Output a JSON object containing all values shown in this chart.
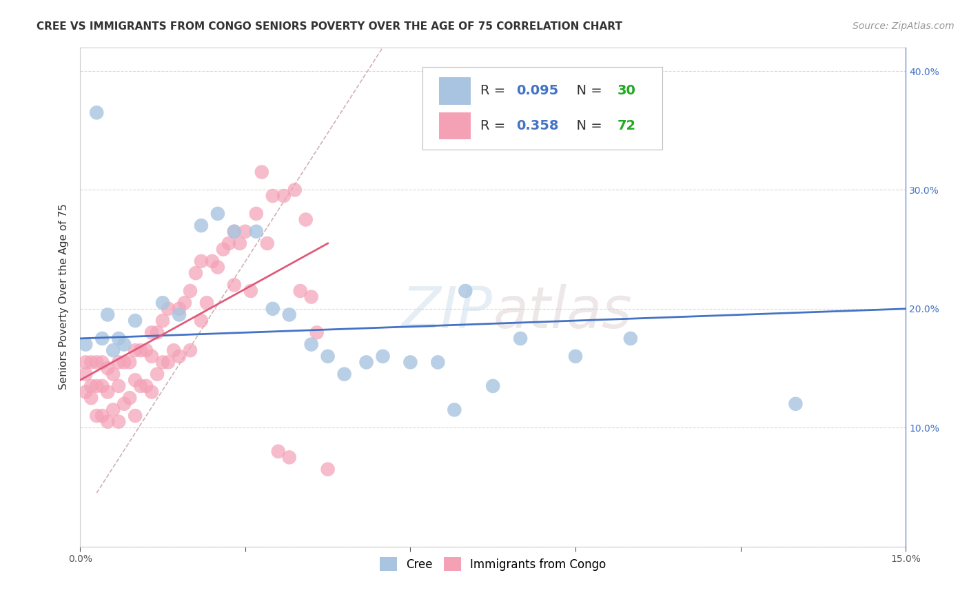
{
  "title": "CREE VS IMMIGRANTS FROM CONGO SENIORS POVERTY OVER THE AGE OF 75 CORRELATION CHART",
  "source": "Source: ZipAtlas.com",
  "ylabel": "Seniors Poverty Over the Age of 75",
  "watermark": "ZIPatlas",
  "xlim": [
    0.0,
    0.15
  ],
  "ylim": [
    0.0,
    0.42
  ],
  "xticks": [
    0.0,
    0.03,
    0.06,
    0.09,
    0.12,
    0.15
  ],
  "xticklabels": [
    "0.0%",
    "",
    "",
    "",
    "",
    "15.0%"
  ],
  "yticks_right": [
    0.1,
    0.2,
    0.3,
    0.4
  ],
  "yticklabels_right": [
    "10.0%",
    "20.0%",
    "30.0%",
    "40.0%"
  ],
  "cree_color": "#a8c4e0",
  "congo_color": "#f4a0b5",
  "cree_line_color": "#4472c4",
  "congo_line_color": "#e05a7a",
  "diagonal_color": "#d0b0b8",
  "R_cree": 0.095,
  "N_cree": 30,
  "R_congo": 0.358,
  "N_congo": 72,
  "legend_R_color": "#4472c4",
  "legend_N_color": "#22aa22",
  "cree_x": [
    0.001,
    0.003,
    0.004,
    0.005,
    0.006,
    0.007,
    0.008,
    0.01,
    0.015,
    0.018,
    0.022,
    0.025,
    0.028,
    0.032,
    0.035,
    0.038,
    0.042,
    0.045,
    0.048,
    0.052,
    0.055,
    0.06,
    0.065,
    0.068,
    0.07,
    0.075,
    0.08,
    0.09,
    0.1,
    0.13
  ],
  "cree_y": [
    0.17,
    0.365,
    0.175,
    0.195,
    0.165,
    0.175,
    0.17,
    0.19,
    0.205,
    0.195,
    0.27,
    0.28,
    0.265,
    0.265,
    0.2,
    0.195,
    0.17,
    0.16,
    0.145,
    0.155,
    0.16,
    0.155,
    0.155,
    0.115,
    0.215,
    0.135,
    0.175,
    0.16,
    0.175,
    0.12
  ],
  "congo_x": [
    0.001,
    0.001,
    0.001,
    0.002,
    0.002,
    0.002,
    0.003,
    0.003,
    0.003,
    0.004,
    0.004,
    0.004,
    0.005,
    0.005,
    0.005,
    0.006,
    0.006,
    0.007,
    0.007,
    0.007,
    0.008,
    0.008,
    0.009,
    0.009,
    0.01,
    0.01,
    0.01,
    0.011,
    0.011,
    0.012,
    0.012,
    0.013,
    0.013,
    0.013,
    0.014,
    0.014,
    0.015,
    0.015,
    0.016,
    0.016,
    0.017,
    0.018,
    0.018,
    0.019,
    0.02,
    0.02,
    0.021,
    0.022,
    0.022,
    0.023,
    0.024,
    0.025,
    0.026,
    0.027,
    0.028,
    0.028,
    0.029,
    0.03,
    0.031,
    0.032,
    0.033,
    0.034,
    0.035,
    0.036,
    0.037,
    0.038,
    0.039,
    0.04,
    0.041,
    0.042,
    0.043,
    0.045
  ],
  "congo_y": [
    0.155,
    0.145,
    0.13,
    0.155,
    0.135,
    0.125,
    0.155,
    0.135,
    0.11,
    0.155,
    0.135,
    0.11,
    0.15,
    0.13,
    0.105,
    0.145,
    0.115,
    0.155,
    0.135,
    0.105,
    0.155,
    0.12,
    0.155,
    0.125,
    0.165,
    0.14,
    0.11,
    0.165,
    0.135,
    0.165,
    0.135,
    0.18,
    0.16,
    0.13,
    0.18,
    0.145,
    0.19,
    0.155,
    0.2,
    0.155,
    0.165,
    0.2,
    0.16,
    0.205,
    0.215,
    0.165,
    0.23,
    0.24,
    0.19,
    0.205,
    0.24,
    0.235,
    0.25,
    0.255,
    0.265,
    0.22,
    0.255,
    0.265,
    0.215,
    0.28,
    0.315,
    0.255,
    0.295,
    0.08,
    0.295,
    0.075,
    0.3,
    0.215,
    0.275,
    0.21,
    0.18,
    0.065
  ],
  "background_color": "#ffffff",
  "grid_color": "#d8d8d8",
  "title_fontsize": 11,
  "axis_label_fontsize": 11,
  "tick_fontsize": 10,
  "legend_fontsize": 14,
  "source_fontsize": 10
}
